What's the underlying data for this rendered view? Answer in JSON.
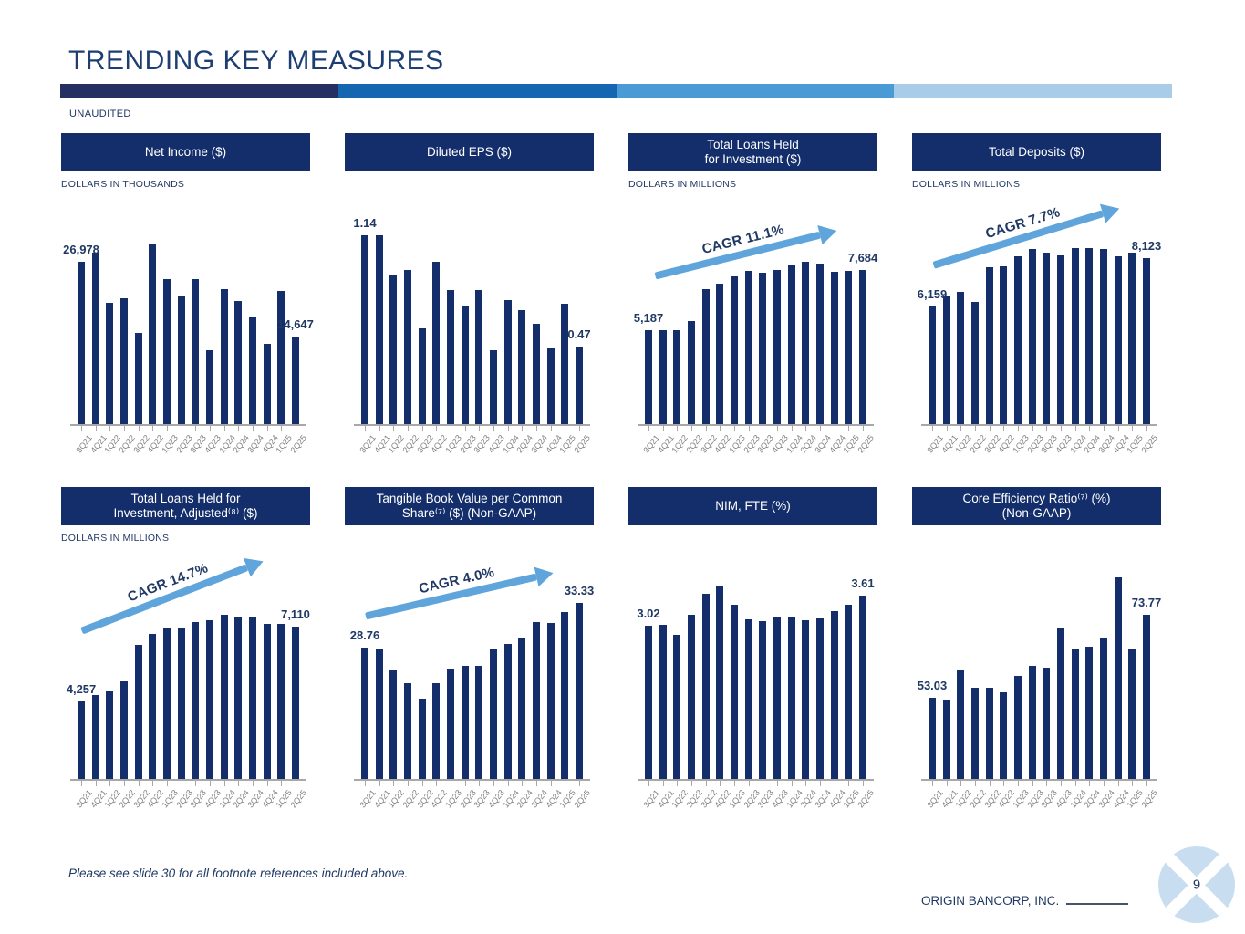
{
  "page": {
    "title": "TRENDING KEY MEASURES",
    "unaudited_label": "UNAUDITED",
    "footnote": "Please see slide 30 for all footnote references included above.",
    "footer_company": "ORIGIN BANCORP, INC.",
    "page_number": "9"
  },
  "colors": {
    "navy_text": "#1F3864",
    "header_box": "#132E6B",
    "bar": "#132E6B",
    "accent_bar_segments": [
      "#262F62",
      "#1566B1",
      "#4A9AD5",
      "#A9CCE9"
    ],
    "cagr_arrow_blue": "#5FA5DB",
    "axis_gray": "#A8A8A8",
    "tick_label_gray": "#808080",
    "logo_light_blue": "#C8DEF0"
  },
  "chart_data": [
    {
      "id": "net-income",
      "type": "bar",
      "title": "Net Income ($)",
      "units": "DOLLARS IN THOUSANDS",
      "categories": [
        "3Q21",
        "4Q21",
        "1Q22",
        "2Q22",
        "3Q22",
        "4Q22",
        "1Q23",
        "2Q23",
        "3Q23",
        "4Q23",
        "1Q24",
        "2Q24",
        "3Q24",
        "4Q24",
        "1Q25",
        "2Q25"
      ],
      "values": [
        26978,
        28500,
        20300,
        21000,
        15300,
        29900,
        24200,
        21400,
        24200,
        12400,
        22500,
        20600,
        18000,
        13500,
        22200,
        14647
      ],
      "first_label": "26,978",
      "last_label": "14,647",
      "cagr_label": null,
      "ylim": [
        0,
        31700
      ]
    },
    {
      "id": "diluted-eps",
      "type": "bar",
      "title": "Diluted EPS ($)",
      "units": "",
      "categories": [
        "3Q21",
        "4Q21",
        "1Q22",
        "2Q22",
        "3Q22",
        "4Q22",
        "1Q23",
        "2Q23",
        "3Q23",
        "4Q23",
        "1Q24",
        "2Q24",
        "3Q24",
        "4Q24",
        "1Q25",
        "2Q25"
      ],
      "values": [
        1.14,
        1.14,
        0.9,
        0.93,
        0.58,
        0.98,
        0.81,
        0.71,
        0.81,
        0.45,
        0.75,
        0.69,
        0.61,
        0.46,
        0.73,
        0.47
      ],
      "first_label": "1.14",
      "last_label": "0.47",
      "cagr_label": null,
      "ylim": [
        0,
        1.15
      ]
    },
    {
      "id": "total-loans-hfi",
      "type": "bar",
      "title": "Total Loans Held\nfor Investment ($)",
      "units": "DOLLARS IN MILLIONS",
      "categories": [
        "3Q21",
        "4Q21",
        "1Q22",
        "2Q22",
        "3Q22",
        "4Q22",
        "1Q23",
        "2Q23",
        "3Q23",
        "4Q23",
        "1Q24",
        "2Q24",
        "3Q24",
        "4Q24",
        "1Q25",
        "2Q25"
      ],
      "values": [
        5187,
        5180,
        5190,
        5560,
        6880,
        7120,
        7410,
        7660,
        7570,
        7680,
        7910,
        8036,
        7950,
        7600,
        7630,
        7684
      ],
      "first_label": "5,187",
      "last_label": "7,684",
      "cagr_label": "CAGR 11.1%",
      "ylim": [
        1250,
        9200
      ]
    },
    {
      "id": "total-deposits",
      "type": "bar",
      "title": "Total Deposits ($)",
      "units": "DOLLARS IN MILLIONS",
      "categories": [
        "3Q21",
        "4Q21",
        "1Q22",
        "2Q22",
        "3Q22",
        "4Q22",
        "1Q23",
        "2Q23",
        "3Q23",
        "4Q23",
        "1Q24",
        "2Q24",
        "3Q24",
        "4Q24",
        "1Q25",
        "2Q25"
      ],
      "values": [
        6159,
        6560,
        6750,
        6310,
        7750,
        7790,
        8220,
        8500,
        8370,
        8250,
        8560,
        8560,
        8500,
        8220,
        8370,
        8123
      ],
      "first_label": "6,159",
      "last_label": "8,123",
      "cagr_label": "CAGR 7.7%",
      "ylim": [
        1250,
        9150
      ]
    },
    {
      "id": "total-loans-hfi-adjusted",
      "type": "bar",
      "title": "Total Loans Held for\nInvestment, Adjusted⁽⁸⁾ ($)",
      "units": "DOLLARS IN MILLIONS",
      "categories": [
        "3Q21",
        "4Q21",
        "1Q22",
        "2Q22",
        "3Q22",
        "4Q22",
        "1Q23",
        "2Q23",
        "3Q23",
        "4Q23",
        "1Q24",
        "2Q24",
        "3Q24",
        "4Q24",
        "1Q25",
        "2Q25"
      ],
      "values": [
        4257,
        4500,
        4660,
        5040,
        6420,
        6820,
        7050,
        7070,
        7280,
        7340,
        7550,
        7480,
        7450,
        7220,
        7190,
        7110
      ],
      "first_label": "4,257",
      "last_label": "7,110",
      "cagr_label": "CAGR 14.7%",
      "ylim": [
        1300,
        9070
      ]
    },
    {
      "id": "tangible-book-value",
      "type": "bar",
      "title": "Tangible Book Value per Common\nShare⁽⁷⁾ ($) (Non-GAAP)",
      "units": "",
      "categories": [
        "3Q21",
        "4Q21",
        "1Q22",
        "2Q22",
        "3Q22",
        "4Q22",
        "1Q23",
        "2Q23",
        "3Q23",
        "4Q23",
        "1Q24",
        "2Q24",
        "3Q24",
        "4Q24",
        "1Q25",
        "2Q25"
      ],
      "values": [
        28.76,
        28.63,
        26.35,
        25.0,
        23.44,
        25.0,
        26.44,
        26.82,
        26.79,
        28.54,
        29.13,
        29.73,
        31.36,
        31.32,
        32.42,
        33.33
      ],
      "first_label": "28.76",
      "last_label": "33.33",
      "cagr_label": "CAGR 4.0%",
      "ylim": [
        15,
        36.3
      ]
    },
    {
      "id": "nim-fte",
      "type": "bar",
      "title": "NIM, FTE (%)",
      "units": "",
      "categories": [
        "3Q21",
        "4Q21",
        "1Q22",
        "2Q22",
        "3Q22",
        "4Q22",
        "1Q23",
        "2Q23",
        "3Q23",
        "4Q23",
        "1Q24",
        "2Q24",
        "3Q24",
        "4Q24",
        "1Q25",
        "2Q25"
      ],
      "values": [
        3.02,
        3.05,
        2.84,
        3.24,
        3.66,
        3.82,
        3.44,
        3.15,
        3.12,
        3.18,
        3.18,
        3.14,
        3.17,
        3.32,
        3.43,
        3.61
      ],
      "first_label": "3.02",
      "last_label": "3.61",
      "cagr_label": null,
      "ylim": [
        0,
        4.03
      ]
    },
    {
      "id": "core-efficiency-ratio",
      "type": "bar",
      "title": "Core Efficiency Ratio⁽⁷⁾ (%)\n(Non-GAAP)",
      "units": "",
      "categories": [
        "3Q21",
        "4Q21",
        "1Q22",
        "2Q22",
        "3Q22",
        "4Q22",
        "1Q23",
        "2Q23",
        "3Q23",
        "4Q23",
        "1Q24",
        "2Q24",
        "3Q24",
        "4Q24",
        "1Q25",
        "2Q25"
      ],
      "values": [
        53.03,
        52.4,
        59.9,
        55.5,
        55.5,
        54.3,
        58.5,
        60.9,
        60.6,
        70.6,
        65.4,
        65.8,
        67.9,
        83.1,
        65.3,
        73.77
      ],
      "first_label": "53.03",
      "last_label": "73.77",
      "cagr_label": null,
      "ylim": [
        32.5,
        83.8
      ]
    }
  ]
}
